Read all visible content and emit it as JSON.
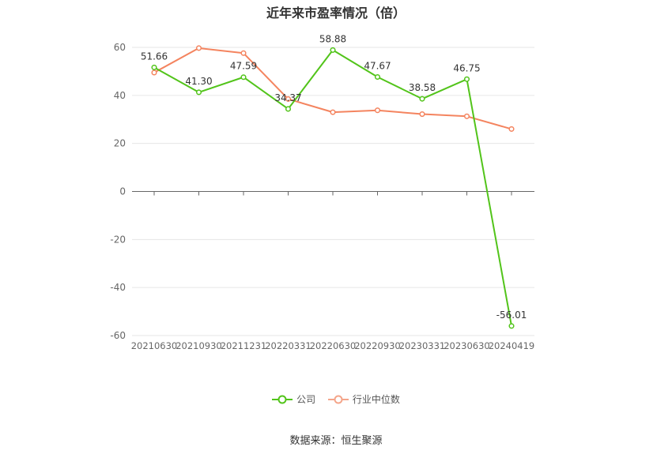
{
  "chart_data": {
    "type": "line",
    "title": "近年来市盈率情况（倍）",
    "categories": [
      "20210630",
      "20210930",
      "20211231",
      "20220331",
      "20220630",
      "20220930",
      "20230331",
      "20230630",
      "20240419"
    ],
    "yticks": [
      "60",
      "40",
      "20",
      "0",
      "-20",
      "-40",
      "-60"
    ],
    "ylim": [
      -60,
      60
    ],
    "grid": true,
    "legend_position": "bottom",
    "series": [
      {
        "name": "公司",
        "color": "#52c41a",
        "values": [
          51.66,
          41.3,
          47.59,
          34.37,
          58.88,
          47.67,
          38.58,
          46.75,
          -56.01
        ],
        "labels": [
          "51.66",
          "41.30",
          "47.59",
          "34.37",
          "58.88",
          "47.67",
          "38.58",
          "46.75",
          "-56.01"
        ]
      },
      {
        "name": "行业中位数",
        "color": "#f4845f",
        "values": [
          49.5,
          59.7,
          57.6,
          38.5,
          33.0,
          33.8,
          32.2,
          31.3,
          26.0
        ]
      }
    ]
  },
  "source": "数据来源：恒生聚源"
}
